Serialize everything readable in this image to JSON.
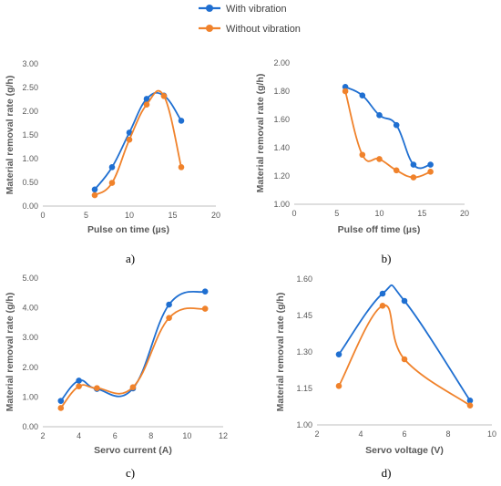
{
  "legend": {
    "entries": [
      {
        "name": "With vibration",
        "color": "#1f6fd1"
      },
      {
        "name": "Without vibration",
        "color": "#f0822b"
      }
    ]
  },
  "chart_data": [
    {
      "type": "line",
      "panel_label": "a)",
      "xlabel": "Pulse on time (µs)",
      "ylabel": "Material removal rate (g/h)",
      "xlim": [
        0,
        20
      ],
      "ylim": [
        0,
        3
      ],
      "xticks": [
        0,
        5,
        10,
        15,
        20
      ],
      "xtick_labels": [
        "0",
        "5",
        "10",
        "15",
        "20"
      ],
      "yticks": [
        0,
        0.5,
        1,
        1.5,
        2,
        2.5,
        3
      ],
      "ytick_labels": [
        "0.00",
        "0.50",
        "1.00",
        "1.50",
        "2.00",
        "2.50",
        "3.00"
      ],
      "series": [
        {
          "name": "With vibration",
          "color": "#1f6fd1",
          "x": [
            6,
            8,
            10,
            12,
            14,
            16
          ],
          "y": [
            0.35,
            0.82,
            1.55,
            2.26,
            2.33,
            1.8
          ]
        },
        {
          "name": "Without vibration",
          "color": "#f0822b",
          "x": [
            6,
            8,
            10,
            12,
            14,
            16
          ],
          "y": [
            0.23,
            0.49,
            1.4,
            2.14,
            2.32,
            0.82
          ]
        }
      ]
    },
    {
      "type": "line",
      "panel_label": "b)",
      "xlabel": "Pulse off time (µs)",
      "ylabel": "Material removal rate (g/h)",
      "xlim": [
        0,
        20
      ],
      "ylim": [
        1,
        2
      ],
      "xticks": [
        0,
        5,
        10,
        15,
        20
      ],
      "xtick_labels": [
        "0",
        "5",
        "10",
        "15",
        "20"
      ],
      "yticks": [
        1,
        1.2,
        1.4,
        1.6,
        1.8,
        2
      ],
      "ytick_labels": [
        "1.00",
        "1.20",
        "1.40",
        "1.60",
        "1.80",
        "2.00"
      ],
      "series": [
        {
          "name": "With vibration",
          "color": "#1f6fd1",
          "x": [
            6,
            8,
            10,
            12,
            14,
            16
          ],
          "y": [
            1.83,
            1.77,
            1.63,
            1.56,
            1.28,
            1.28
          ]
        },
        {
          "name": "Without vibration",
          "color": "#f0822b",
          "x": [
            6,
            8,
            10,
            12,
            14,
            16
          ],
          "y": [
            1.8,
            1.35,
            1.32,
            1.24,
            1.19,
            1.23
          ]
        }
      ]
    },
    {
      "type": "line",
      "panel_label": "c)",
      "xlabel": "Servo current (A)",
      "ylabel": "Material removal rate (g/h)",
      "xlim": [
        2,
        12
      ],
      "ylim": [
        0,
        5
      ],
      "xticks": [
        2,
        4,
        6,
        8,
        10,
        12
      ],
      "xtick_labels": [
        "2",
        "4",
        "6",
        "8",
        "10",
        "12"
      ],
      "yticks": [
        0,
        1,
        2,
        3,
        4,
        5
      ],
      "ytick_labels": [
        "0.00",
        "1.00",
        "2.00",
        "3.00",
        "4.00",
        "5.00"
      ],
      "series": [
        {
          "name": "With vibration",
          "color": "#1f6fd1",
          "x": [
            3,
            4,
            5,
            7,
            9,
            11
          ],
          "y": [
            0.87,
            1.55,
            1.27,
            1.29,
            4.11,
            4.55
          ]
        },
        {
          "name": "Without vibration",
          "color": "#f0822b",
          "x": [
            3,
            4,
            5,
            7,
            9,
            11
          ],
          "y": [
            0.63,
            1.36,
            1.3,
            1.33,
            3.66,
            3.97
          ]
        }
      ]
    },
    {
      "type": "line",
      "panel_label": "d)",
      "xlabel": "Servo voltage (V)",
      "ylabel": "Material removal rate (g/h)",
      "xlim": [
        2,
        10
      ],
      "ylim": [
        1,
        1.6
      ],
      "xticks": [
        2,
        4,
        6,
        8,
        10
      ],
      "xtick_labels": [
        "2",
        "4",
        "6",
        "8",
        "10"
      ],
      "yticks": [
        1,
        1.15,
        1.3,
        1.45,
        1.6
      ],
      "ytick_labels": [
        "1.00",
        "1.15",
        "1.30",
        "1.45",
        "1.60"
      ],
      "series": [
        {
          "name": "With vibration",
          "color": "#1f6fd1",
          "x": [
            3,
            5,
            6,
            9
          ],
          "y": [
            1.29,
            1.54,
            1.51,
            1.1
          ]
        },
        {
          "name": "Without vibration",
          "color": "#f0822b",
          "x": [
            3,
            5,
            6,
            9
          ],
          "y": [
            1.16,
            1.49,
            1.27,
            1.08
          ]
        }
      ]
    }
  ]
}
